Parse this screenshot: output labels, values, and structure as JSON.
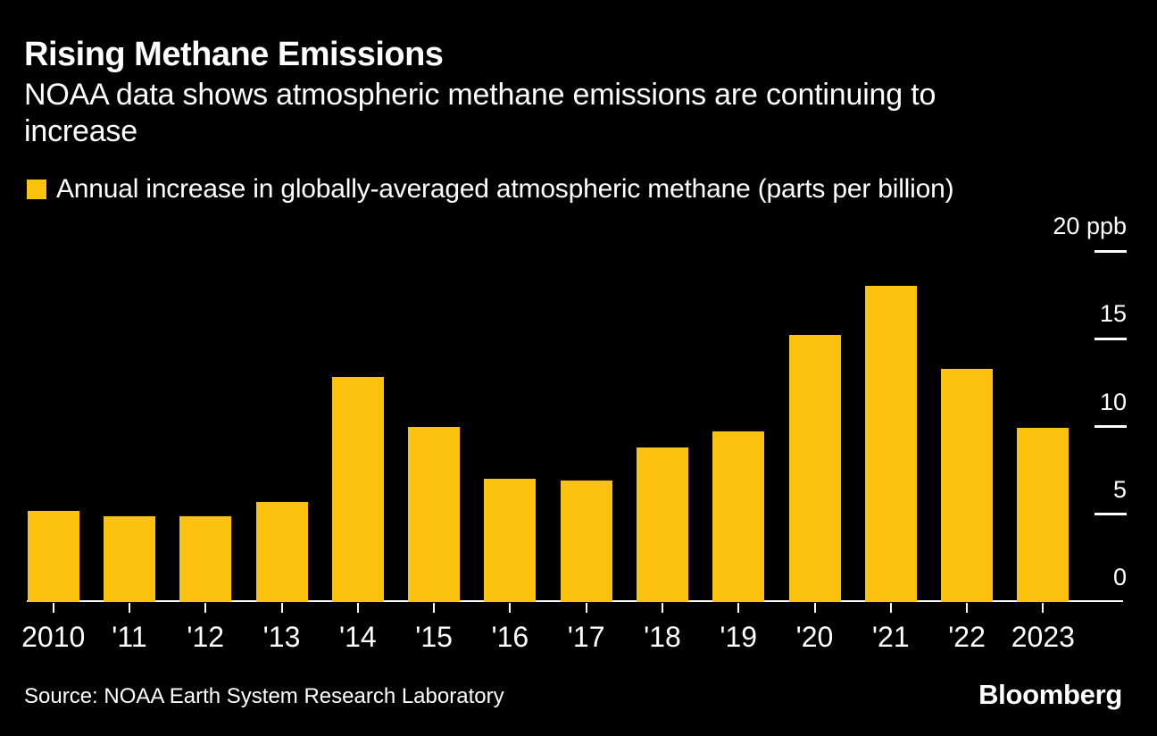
{
  "header": {
    "title": "Rising Methane Emissions",
    "subtitle": "NOAA data shows atmospheric methane emissions are continuing to increase"
  },
  "legend": {
    "label": "Annual increase in globally-averaged atmospheric methane (parts per billion)"
  },
  "chart_data": {
    "type": "bar",
    "title": "Rising Methane Emissions",
    "subtitle": "NOAA data shows atmospheric methane emissions are continuing to increase",
    "legend_label": "Annual increase in globally-averaged atmospheric methane (parts per billion)",
    "categories": [
      "2010",
      "'11",
      "'12",
      "'13",
      "'14",
      "'15",
      "'16",
      "'17",
      "'18",
      "'19",
      "'20",
      "'21",
      "'22",
      "2023"
    ],
    "values": [
      5.2,
      4.9,
      4.9,
      5.7,
      12.8,
      10.0,
      7.0,
      6.9,
      8.8,
      9.7,
      15.2,
      18.0,
      13.3,
      9.9
    ],
    "unit": "ppb",
    "ylim": [
      0,
      20
    ],
    "y_ticks": [
      {
        "value": 0,
        "label": "0"
      },
      {
        "value": 5,
        "label": "5"
      },
      {
        "value": 10,
        "label": "10"
      },
      {
        "value": 15,
        "label": "15"
      },
      {
        "value": 20,
        "label": "20 ppb"
      }
    ],
    "grid": false,
    "legend_position": "top-left",
    "axis_side": "right",
    "bar_color": "#FDC20E"
  },
  "footer": {
    "source": "Source: NOAA Earth System Research Laboratory",
    "brand": "Bloomberg"
  },
  "colors": {
    "background": "#000000",
    "text": "#FFFFFF",
    "accent": "#FDC20E",
    "axis": "#FFFFFF"
  }
}
